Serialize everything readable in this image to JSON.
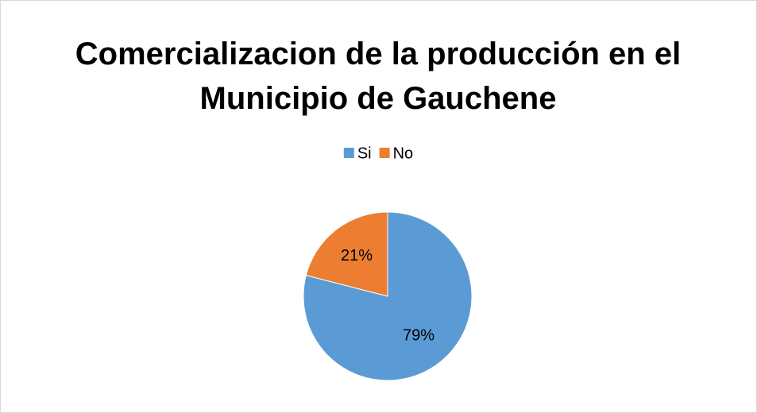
{
  "chart_data": {
    "type": "pie",
    "title": "Comercializacion de la producción en el Municipio de Gauchene",
    "categories": [
      "Si",
      "No"
    ],
    "values": [
      79,
      21
    ],
    "value_labels": [
      "79%",
      "21%"
    ],
    "colors": [
      "#5b9bd5",
      "#ed7d31"
    ],
    "legend": "top"
  }
}
